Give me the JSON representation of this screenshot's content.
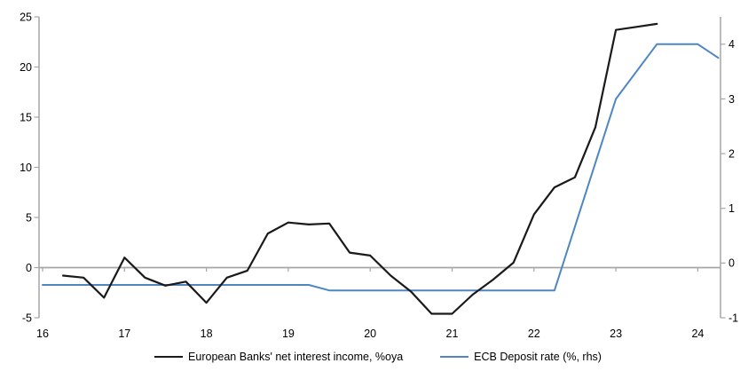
{
  "chart_data": {
    "type": "line",
    "title": "",
    "grid": "none",
    "legend_position": "bottom",
    "axis_color": "#a6a6a6",
    "text_color": "#000000",
    "x_axis": {
      "tick_labels": [
        "16",
        "17",
        "18",
        "19",
        "20",
        "21",
        "22",
        "23",
        "24"
      ],
      "tick_values": [
        16,
        17,
        18,
        19,
        20,
        21,
        22,
        23,
        24
      ]
    },
    "left_axis": {
      "range": [
        -5,
        25
      ],
      "tick_labels": [
        "25",
        "20",
        "15",
        "10",
        "5",
        "0",
        "-5"
      ],
      "tick_values": [
        25,
        20,
        15,
        10,
        5,
        0,
        -5
      ]
    },
    "right_axis": {
      "range": [
        -1,
        4.5
      ],
      "tick_labels": [
        "4",
        "3",
        "2",
        "1",
        "0",
        "-1"
      ],
      "tick_values": [
        4,
        3,
        2,
        1,
        0,
        -1
      ]
    },
    "series": [
      {
        "name": "European Banks' net interest income, %oya",
        "axis": "left",
        "color": "#1a1a1a",
        "x": [
          16.25,
          16.5,
          16.75,
          17.0,
          17.25,
          17.5,
          17.75,
          18.0,
          18.25,
          18.5,
          18.75,
          19.0,
          19.25,
          19.5,
          19.75,
          20.0,
          20.25,
          20.5,
          20.75,
          21.0,
          21.25,
          21.5,
          21.75,
          22.0,
          22.25,
          22.5,
          22.75,
          23.0,
          23.25,
          23.5
        ],
        "values": [
          -0.8,
          -1.0,
          -3.0,
          1.0,
          -1.0,
          -1.8,
          -1.4,
          -3.5,
          -1.0,
          -0.3,
          3.4,
          4.5,
          4.3,
          4.4,
          1.5,
          1.2,
          -0.8,
          -2.4,
          -4.6,
          -4.6,
          -2.7,
          -1.2,
          0.5,
          5.3,
          8.0,
          9.0,
          14.0,
          23.7,
          24.0,
          24.3
        ]
      },
      {
        "name": "ECB Deposit rate (%, rhs)",
        "axis": "right",
        "color": "#4e86c4",
        "x": [
          16.0,
          19.25,
          19.5,
          22.25,
          23.0,
          23.5,
          24.0,
          24.25
        ],
        "values": [
          -0.4,
          -0.4,
          -0.5,
          -0.5,
          3.0,
          4.0,
          4.0,
          3.75
        ]
      }
    ]
  }
}
